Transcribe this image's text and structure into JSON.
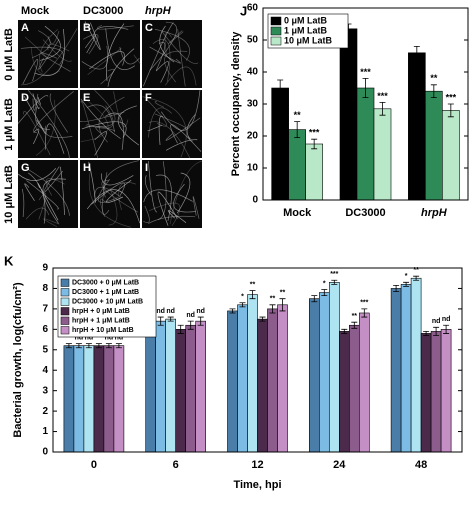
{
  "micrographs": {
    "columns": [
      "Mock",
      "DC3000",
      "hrpH"
    ],
    "rows": [
      "0 μM LatB",
      "1 μM LatB",
      "10 μM LatB"
    ],
    "panels": [
      "A",
      "B",
      "C",
      "D",
      "E",
      "F",
      "G",
      "H",
      "I"
    ]
  },
  "chart_data": [
    {
      "type": "bar",
      "panel": "J",
      "ylabel": "Percent occupancy, density",
      "categories": [
        "Mock",
        "DC3000",
        "hrpH"
      ],
      "series": [
        {
          "name": "0 μM LatB",
          "color": "#000000",
          "values": [
            35,
            53.5,
            46
          ],
          "errors": [
            2.5,
            1.5,
            2
          ]
        },
        {
          "name": "1 μM LatB",
          "color": "#2e8b57",
          "values": [
            22,
            35,
            34
          ],
          "errors": [
            2.5,
            3,
            2
          ],
          "labels": [
            "**",
            "***",
            "**"
          ]
        },
        {
          "name": "10 μM LatB",
          "color": "#b8e8c8",
          "values": [
            17.5,
            28.5,
            28
          ],
          "errors": [
            1.5,
            2,
            2
          ],
          "labels": [
            "***",
            "***",
            "***"
          ]
        }
      ],
      "ylim": [
        0,
        60
      ],
      "yticks": [
        0,
        10,
        20,
        30,
        40,
        50,
        60
      ],
      "legend": "upper left"
    },
    {
      "type": "bar",
      "panel": "K",
      "ylabel": "Bacterial growth, log(cfu/cm²)",
      "xlabel": "Time, hpi",
      "categories": [
        "0",
        "6",
        "12",
        "24",
        "48"
      ],
      "series": [
        {
          "name": "DC3000 + 0 μM LatB",
          "color": "#4a7ea8",
          "values": [
            5.2,
            6.2,
            6.9,
            7.5,
            8.0
          ],
          "errors": [
            0.1,
            0.3,
            0.1,
            0.15,
            0.15
          ]
        },
        {
          "name": "DC3000 + 1 μM LatB",
          "color": "#7cbbe3",
          "values": [
            5.2,
            6.4,
            7.2,
            7.8,
            8.2
          ],
          "errors": [
            0.1,
            0.2,
            0.1,
            0.15,
            0.1
          ],
          "labels": [
            "nd",
            "nd",
            "*",
            "*",
            "*"
          ]
        },
        {
          "name": "DC3000 + 10 μM LatB",
          "color": "#aee4f2",
          "values": [
            5.2,
            6.5,
            7.7,
            8.3,
            8.5
          ],
          "errors": [
            0.1,
            0.1,
            0.2,
            0.1,
            0.1
          ],
          "labels": [
            "nd",
            "nd",
            "**",
            "***",
            "**"
          ]
        },
        {
          "name": "hrpH + 0 μM LatB",
          "color": "#4b2a4b",
          "values": [
            5.2,
            6.0,
            6.5,
            5.9,
            5.8
          ],
          "errors": [
            0.1,
            0.2,
            0.1,
            0.1,
            0.1
          ]
        },
        {
          "name": "hrpH + 1 μM LatB",
          "color": "#8c5c8c",
          "values": [
            5.2,
            6.2,
            7.0,
            6.2,
            5.9
          ],
          "errors": [
            0.1,
            0.2,
            0.2,
            0.15,
            0.2
          ],
          "labels": [
            "nd",
            "nd",
            "**",
            "**",
            "nd"
          ]
        },
        {
          "name": "hrpH + 10 μM LatB",
          "color": "#c48fc4",
          "values": [
            5.2,
            6.4,
            7.2,
            6.8,
            6.0
          ],
          "errors": [
            0.1,
            0.2,
            0.3,
            0.2,
            0.2
          ],
          "labels": [
            "nd",
            "nd",
            "**",
            "***",
            "nd"
          ]
        }
      ],
      "ylim": [
        0,
        9
      ],
      "yticks": [
        0,
        1,
        2,
        3,
        4,
        5,
        6,
        7,
        8,
        9
      ],
      "legend": "upper left"
    }
  ]
}
